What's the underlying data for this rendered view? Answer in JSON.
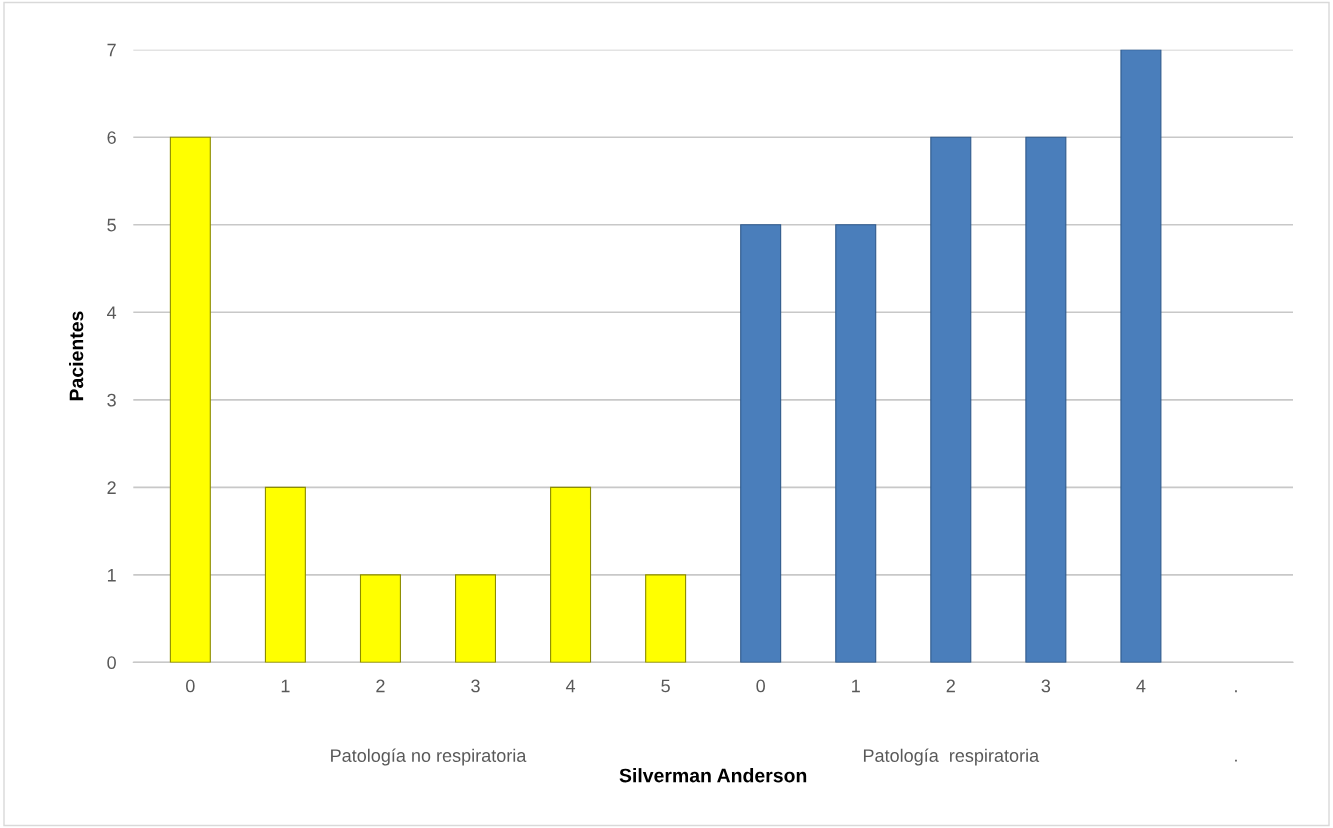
{
  "chart_data": {
    "type": "bar",
    "categories": [
      "0",
      "1",
      "2",
      "3",
      "4",
      "5",
      "0",
      "1",
      "2",
      "3",
      "4",
      "."
    ],
    "values": [
      6,
      2,
      1,
      1,
      2,
      1,
      5,
      5,
      6,
      6,
      7,
      null
    ],
    "colors": [
      "#ffff00",
      "#ffff00",
      "#ffff00",
      "#ffff00",
      "#ffff00",
      "#ffff00",
      "#4a7ebb",
      "#4a7ebb",
      "#4a7ebb",
      "#4a7ebb",
      "#4a7ebb",
      "#4a7ebb"
    ],
    "xlabel": "Silverman Anderson",
    "ylabel": "Pacientes",
    "ylim": [
      0,
      7
    ],
    "yticks": [
      0,
      1,
      2,
      3,
      4,
      5,
      6,
      7
    ],
    "grid": "y",
    "annotations": [
      "Patología no respiratoria",
      "Patología  respiratoria",
      "."
    ]
  }
}
